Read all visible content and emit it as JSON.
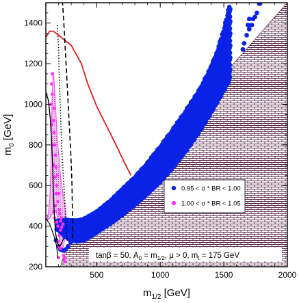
{
  "chart_data": {
    "type": "scatter",
    "xlabel": {
      "main": "m",
      "sub": "1/2",
      "unit": " [GeV]"
    },
    "ylabel": {
      "main": "m",
      "sub": "0",
      "unit": " [GeV]"
    },
    "xlim": [
      100,
      2000
    ],
    "ylim": [
      200,
      1500
    ],
    "x_ticks": [
      500,
      1000,
      1500,
      2000
    ],
    "y_ticks": [
      200,
      400,
      600,
      800,
      1000,
      1200,
      1400
    ],
    "x_tick_labels": [
      "500",
      "1000",
      "1500",
      "2000"
    ],
    "y_tick_labels": [
      "200",
      "400",
      "600",
      "800",
      "1000",
      "1200",
      "1400"
    ],
    "legend_position": "center-right",
    "legend": [
      {
        "label": "0.95 < σ * BR < 1.00",
        "color": "#0a23e6",
        "marker": "dot"
      },
      {
        "label": "1.00 < σ * BR < 1.05",
        "color": "#ff30ff",
        "marker": "dot"
      }
    ],
    "annotation": {
      "parts": [
        {
          "t": "tanβ = 50, A"
        },
        {
          "t": "0",
          "sub": true
        },
        {
          "t": " = m"
        },
        {
          "t": "1/2",
          "sub": true
        },
        {
          "t": ", μ > 0, m"
        },
        {
          "t": "t",
          "sub": true
        },
        {
          "t": " = 175 GeV"
        }
      ]
    },
    "colors": {
      "blue": "#0a23e6",
      "magenta": "#ff30ff",
      "pink_fill": "#f2b8f2",
      "red": "#e31a1c",
      "hatch": "#5a2a4a"
    },
    "blue_band": {
      "lower": [
        [
          190,
          385
        ],
        [
          250,
          350
        ],
        [
          300,
          330
        ],
        [
          350,
          325
        ],
        [
          400,
          330
        ],
        [
          500,
          370
        ],
        [
          600,
          410
        ],
        [
          700,
          455
        ],
        [
          800,
          505
        ],
        [
          900,
          560
        ],
        [
          1000,
          620
        ],
        [
          1100,
          690
        ],
        [
          1200,
          770
        ],
        [
          1300,
          860
        ],
        [
          1400,
          960
        ],
        [
          1500,
          1070
        ],
        [
          1580,
          1160
        ],
        [
          1650,
          1250
        ]
      ],
      "upper": [
        [
          190,
          425
        ],
        [
          250,
          432
        ],
        [
          300,
          428
        ],
        [
          350,
          428
        ],
        [
          400,
          435
        ],
        [
          500,
          470
        ],
        [
          600,
          520
        ],
        [
          700,
          580
        ],
        [
          800,
          640
        ],
        [
          900,
          710
        ],
        [
          1000,
          790
        ],
        [
          1100,
          875
        ],
        [
          1200,
          965
        ],
        [
          1300,
          1060
        ],
        [
          1400,
          1180
        ],
        [
          1450,
          1260
        ],
        [
          1500,
          1360
        ],
        [
          1550,
          1490
        ]
      ],
      "outliers": [
        [
          1650,
          1270
        ],
        [
          1660,
          1300
        ],
        [
          1680,
          1340
        ],
        [
          1700,
          1370
        ],
        [
          1720,
          1390
        ],
        [
          1730,
          1420
        ],
        [
          1760,
          1450
        ],
        [
          1780,
          1495
        ],
        [
          1700,
          1420
        ],
        [
          1690,
          1390
        ],
        [
          1745,
          1430
        ]
      ]
    },
    "blue_extra": [
      [
        180,
        330
      ],
      [
        200,
        300
      ],
      [
        215,
        285
      ],
      [
        235,
        280
      ],
      [
        255,
        285
      ],
      [
        275,
        300
      ],
      [
        295,
        320
      ],
      [
        315,
        340
      ],
      [
        340,
        370
      ],
      [
        360,
        385
      ],
      [
        385,
        395
      ]
    ],
    "magenta_points": [
      [
        240,
        255
      ],
      [
        245,
        240
      ],
      [
        250,
        225
      ],
      [
        200,
        245
      ],
      [
        205,
        300
      ],
      [
        210,
        295
      ],
      [
        215,
        290
      ],
      [
        195,
        325
      ],
      [
        205,
        355
      ],
      [
        215,
        380
      ],
      [
        225,
        395
      ],
      [
        235,
        410
      ],
      [
        215,
        425
      ],
      [
        220,
        440
      ],
      [
        210,
        460
      ],
      [
        205,
        480
      ],
      [
        195,
        520
      ],
      [
        200,
        560
      ],
      [
        185,
        600
      ],
      [
        190,
        650
      ],
      [
        180,
        690
      ],
      [
        175,
        750
      ],
      [
        170,
        800
      ],
      [
        165,
        860
      ],
      [
        160,
        920
      ],
      [
        165,
        980
      ],
      [
        150,
        1050
      ],
      [
        145,
        1100
      ],
      [
        150,
        1150
      ],
      [
        140,
        1000
      ],
      [
        145,
        900
      ],
      [
        155,
        800
      ],
      [
        160,
        700
      ],
      [
        170,
        640
      ],
      [
        180,
        560
      ],
      [
        175,
        500
      ],
      [
        165,
        470
      ],
      [
        170,
        440
      ],
      [
        185,
        420
      ],
      [
        195,
        400
      ]
    ],
    "pink_region": [
      [
        110,
        430
      ],
      [
        130,
        520
      ],
      [
        140,
        700
      ],
      [
        145,
        900
      ],
      [
        150,
        1050
      ],
      [
        160,
        1160
      ],
      [
        175,
        1020
      ],
      [
        185,
        880
      ],
      [
        200,
        760
      ],
      [
        215,
        650
      ],
      [
        235,
        560
      ],
      [
        255,
        470
      ],
      [
        260,
        390
      ],
      [
        245,
        320
      ],
      [
        230,
        280
      ],
      [
        215,
        300
      ],
      [
        205,
        340
      ],
      [
        195,
        420
      ],
      [
        180,
        480
      ],
      [
        160,
        470
      ],
      [
        130,
        440
      ]
    ],
    "red_curve": [
      [
        100,
        1330
      ],
      [
        130,
        1360
      ],
      [
        160,
        1360
      ],
      [
        220,
        1330
      ],
      [
        300,
        1290
      ],
      [
        380,
        1200
      ],
      [
        430,
        1100
      ],
      [
        500,
        990
      ],
      [
        580,
        890
      ],
      [
        660,
        790
      ],
      [
        720,
        710
      ],
      [
        770,
        650
      ]
    ],
    "black_solid": [
      [
        100,
        1060
      ],
      [
        120,
        1020
      ],
      [
        135,
        930
      ],
      [
        145,
        820
      ],
      [
        155,
        680
      ],
      [
        160,
        560
      ],
      [
        168,
        440
      ],
      [
        178,
        360
      ],
      [
        190,
        320
      ],
      [
        205,
        300
      ],
      [
        220,
        310
      ],
      [
        240,
        340
      ]
    ],
    "black_dotted": [
      [
        190,
        1390
      ],
      [
        200,
        1280
      ],
      [
        205,
        1150
      ],
      [
        215,
        960
      ],
      [
        225,
        780
      ],
      [
        240,
        620
      ],
      [
        255,
        470
      ],
      [
        265,
        330
      ]
    ],
    "black_dashed": [
      [
        230,
        1510
      ],
      [
        240,
        1420
      ],
      [
        250,
        1300
      ],
      [
        265,
        1130
      ],
      [
        280,
        950
      ],
      [
        295,
        780
      ],
      [
        305,
        620
      ],
      [
        310,
        450
      ],
      [
        312,
        330
      ]
    ],
    "black_solid_bottom": [
      [
        100,
        440
      ],
      [
        130,
        410
      ],
      [
        160,
        360
      ],
      [
        175,
        330
      ],
      [
        185,
        300
      ],
      [
        190,
        270
      ],
      [
        195,
        240
      ]
    ],
    "hatched_region": [
      [
        100,
        200
      ],
      [
        2000,
        200
      ],
      [
        2000,
        1500
      ],
      [
        350,
        330
      ],
      [
        260,
        300
      ],
      [
        215,
        200
      ]
    ]
  }
}
